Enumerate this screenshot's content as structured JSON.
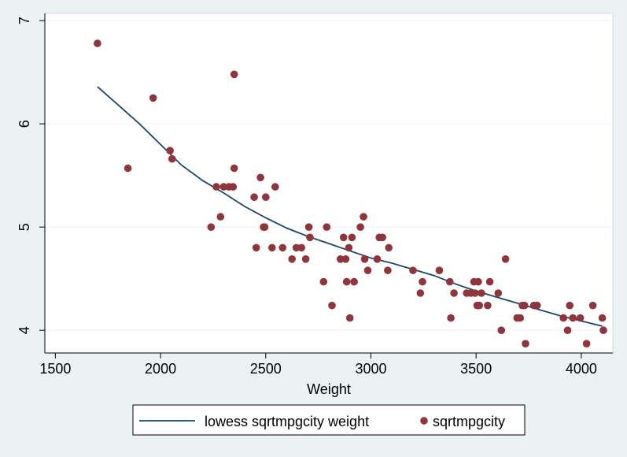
{
  "chart_data": {
    "type": "scatter",
    "title": "",
    "xlabel": "Weight",
    "ylabel": "",
    "xlim": [
      1450,
      4150
    ],
    "ylim": [
      3.78,
      7.07
    ],
    "x_ticks": [
      1500,
      2000,
      2500,
      3000,
      3500,
      4000
    ],
    "x_tick_labels": [
      "1500",
      "2000",
      "2500",
      "3000",
      "3500",
      "4000"
    ],
    "y_ticks": [
      4,
      5,
      6,
      7
    ],
    "y_tick_labels": [
      "4",
      "5",
      "6",
      "7"
    ],
    "grid": true,
    "legend_position": "bottom",
    "colors": {
      "page_background": "#eaf2f3",
      "plot_background": "#ffffff",
      "grid": "#eaf2f3",
      "line": "#1a476f",
      "points": "#90353b"
    },
    "series": [
      {
        "name": "lowess sqrtmpgcity weight",
        "type": "line",
        "points": [
          [
            1700,
            6.36
          ],
          [
            1800,
            6.18
          ],
          [
            1900,
            6.0
          ],
          [
            2000,
            5.8
          ],
          [
            2100,
            5.6
          ],
          [
            2200,
            5.45
          ],
          [
            2300,
            5.33
          ],
          [
            2400,
            5.2
          ],
          [
            2500,
            5.09
          ],
          [
            2600,
            4.99
          ],
          [
            2700,
            4.91
          ],
          [
            2800,
            4.84
          ],
          [
            2900,
            4.77
          ],
          [
            3000,
            4.7
          ],
          [
            3100,
            4.65
          ],
          [
            3200,
            4.59
          ],
          [
            3300,
            4.53
          ],
          [
            3400,
            4.45
          ],
          [
            3500,
            4.38
          ],
          [
            3600,
            4.32
          ],
          [
            3700,
            4.26
          ],
          [
            3800,
            4.2
          ],
          [
            3900,
            4.14
          ],
          [
            4000,
            4.09
          ],
          [
            4100,
            4.04
          ]
        ]
      },
      {
        "name": "sqrtmpgcity",
        "type": "scatter",
        "points": [
          [
            1700,
            6.78
          ],
          [
            1845,
            5.57
          ],
          [
            1965,
            6.25
          ],
          [
            2045,
            5.74
          ],
          [
            2055,
            5.66
          ],
          [
            2240,
            5.0
          ],
          [
            2265,
            5.39
          ],
          [
            2285,
            5.1
          ],
          [
            2300,
            5.39
          ],
          [
            2325,
            5.39
          ],
          [
            2345,
            5.39
          ],
          [
            2350,
            5.57
          ],
          [
            2350,
            6.48
          ],
          [
            2445,
            5.29
          ],
          [
            2455,
            4.8
          ],
          [
            2475,
            5.48
          ],
          [
            2490,
            5.0
          ],
          [
            2495,
            5.0
          ],
          [
            2500,
            5.29
          ],
          [
            2530,
            4.8
          ],
          [
            2545,
            5.39
          ],
          [
            2580,
            4.8
          ],
          [
            2625,
            4.69
          ],
          [
            2645,
            4.8
          ],
          [
            2670,
            4.8
          ],
          [
            2690,
            4.69
          ],
          [
            2705,
            5.0
          ],
          [
            2710,
            4.9
          ],
          [
            2775,
            4.47
          ],
          [
            2790,
            5.0
          ],
          [
            2815,
            4.24
          ],
          [
            2855,
            4.69
          ],
          [
            2870,
            4.9
          ],
          [
            2880,
            4.69
          ],
          [
            2885,
            4.47
          ],
          [
            2895,
            4.8
          ],
          [
            2900,
            4.12
          ],
          [
            2910,
            4.9
          ],
          [
            2920,
            4.47
          ],
          [
            2950,
            5.0
          ],
          [
            2965,
            5.1
          ],
          [
            2970,
            4.69
          ],
          [
            2985,
            4.58
          ],
          [
            3030,
            4.69
          ],
          [
            3040,
            4.9
          ],
          [
            3055,
            4.9
          ],
          [
            3080,
            4.58
          ],
          [
            3085,
            4.8
          ],
          [
            3200,
            4.58
          ],
          [
            3235,
            4.36
          ],
          [
            3245,
            4.47
          ],
          [
            3325,
            4.58
          ],
          [
            3375,
            4.47
          ],
          [
            3380,
            4.12
          ],
          [
            3395,
            4.36
          ],
          [
            3455,
            4.36
          ],
          [
            3475,
            4.36
          ],
          [
            3490,
            4.47
          ],
          [
            3495,
            4.36
          ],
          [
            3505,
            4.24
          ],
          [
            3510,
            4.47
          ],
          [
            3515,
            4.24
          ],
          [
            3525,
            4.36
          ],
          [
            3555,
            4.24
          ],
          [
            3565,
            4.47
          ],
          [
            3605,
            4.36
          ],
          [
            3620,
            4.0
          ],
          [
            3640,
            4.69
          ],
          [
            3695,
            4.12
          ],
          [
            3710,
            4.12
          ],
          [
            3720,
            4.24
          ],
          [
            3730,
            4.24
          ],
          [
            3735,
            3.87
          ],
          [
            3775,
            4.24
          ],
          [
            3790,
            4.24
          ],
          [
            3915,
            4.12
          ],
          [
            3935,
            4.0
          ],
          [
            3945,
            4.24
          ],
          [
            3960,
            4.12
          ],
          [
            3995,
            4.12
          ],
          [
            4025,
            3.87
          ],
          [
            4055,
            4.24
          ],
          [
            4100,
            4.12
          ],
          [
            4105,
            4.0
          ]
        ]
      }
    ]
  }
}
